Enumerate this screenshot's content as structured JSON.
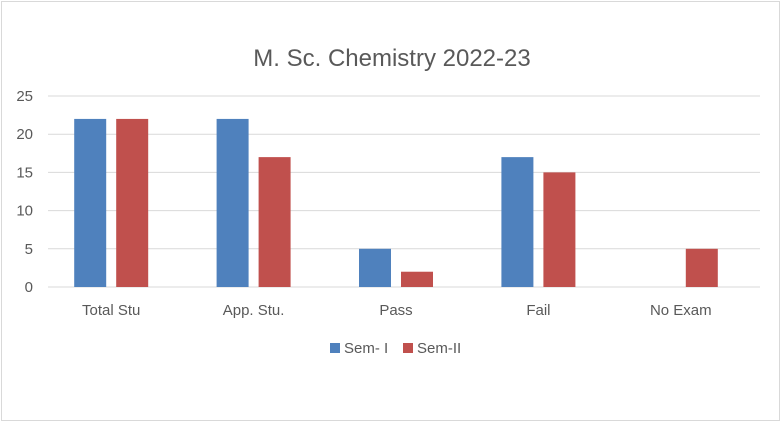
{
  "chart_data": {
    "type": "bar",
    "title": "M. Sc. Chemistry 2022-23",
    "xlabel": "",
    "ylabel": "",
    "categories": [
      "Total Stu",
      "App. Stu.",
      "Pass",
      "Fail",
      "No Exam"
    ],
    "series": [
      {
        "name": "Sem- I",
        "values": [
          22,
          22,
          5,
          17,
          0
        ],
        "color": "#4f81bd"
      },
      {
        "name": "Sem-II",
        "values": [
          22,
          17,
          2,
          15,
          5
        ],
        "color": "#c0504d"
      }
    ],
    "ylim": [
      0,
      25
    ],
    "yticks": [
      0,
      5,
      10,
      15,
      20,
      25
    ],
    "grid": true,
    "legend_position": "bottom"
  }
}
